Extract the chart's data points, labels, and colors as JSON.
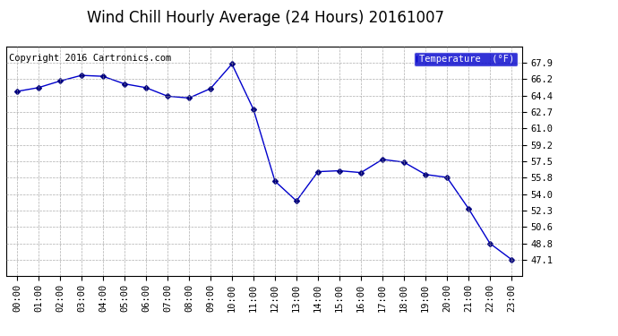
{
  "title": "Wind Chill Hourly Average (24 Hours) 20161007",
  "copyright": "Copyright 2016 Cartronics.com",
  "x_labels": [
    "00:00",
    "01:00",
    "02:00",
    "03:00",
    "04:00",
    "05:00",
    "06:00",
    "07:00",
    "08:00",
    "09:00",
    "10:00",
    "11:00",
    "12:00",
    "13:00",
    "14:00",
    "15:00",
    "16:00",
    "17:00",
    "18:00",
    "19:00",
    "20:00",
    "21:00",
    "22:00",
    "23:00"
  ],
  "y_values": [
    64.9,
    65.3,
    66.0,
    66.6,
    66.5,
    65.7,
    65.3,
    64.4,
    64.2,
    65.2,
    67.8,
    63.0,
    55.4,
    53.3,
    56.4,
    56.5,
    56.3,
    57.7,
    57.4,
    56.1,
    55.8,
    52.5,
    48.8,
    47.1
  ],
  "line_color": "#0000cc",
  "marker_color": "#000080",
  "background_color": "#ffffff",
  "plot_bg_color": "#ffffff",
  "grid_color": "#999999",
  "ylim_min": 45.4,
  "ylim_max": 69.6,
  "yticks": [
    47.1,
    48.8,
    50.6,
    52.3,
    54.0,
    55.8,
    57.5,
    59.2,
    61.0,
    62.7,
    64.4,
    66.2,
    67.9
  ],
  "legend_label": "Temperature  (°F)",
  "legend_bg": "#0000cc",
  "legend_text_color": "#ffffff",
  "title_fontsize": 12,
  "tick_fontsize": 7.5,
  "copyright_fontsize": 7.5
}
